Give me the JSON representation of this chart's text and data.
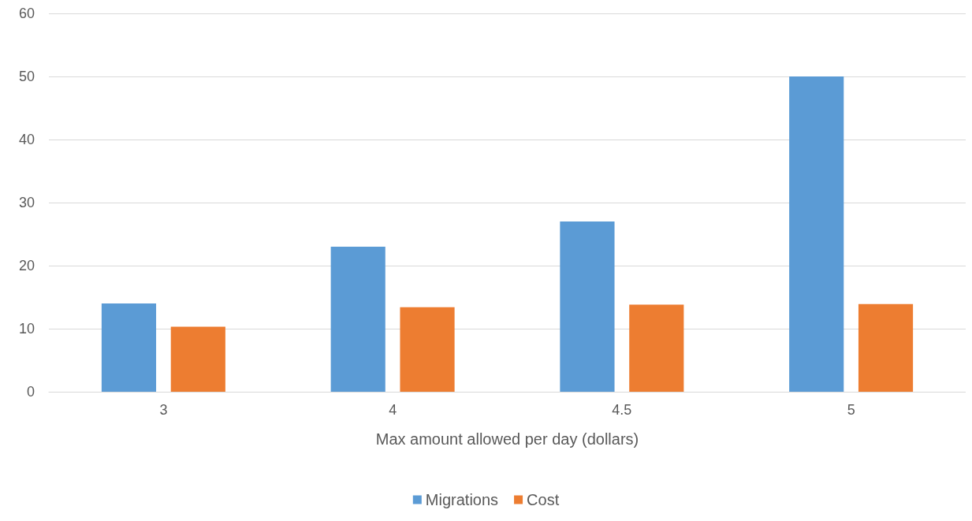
{
  "chart_data": {
    "type": "bar",
    "xlabel": "Max amount allowed per day (dollars)",
    "categories": [
      "3",
      "4",
      "4.5",
      "5"
    ],
    "series": [
      {
        "name": "Migrations",
        "color": "#5b9bd5",
        "values": [
          14,
          23,
          27,
          50
        ]
      },
      {
        "name": "Cost",
        "color": "#ed7d31",
        "values": [
          10.3,
          13.4,
          13.8,
          13.9
        ]
      }
    ],
    "ylim": [
      0,
      60
    ],
    "yticks": [
      0,
      10,
      20,
      30,
      40,
      50,
      60
    ],
    "grid": "y",
    "legend": "bottom"
  }
}
